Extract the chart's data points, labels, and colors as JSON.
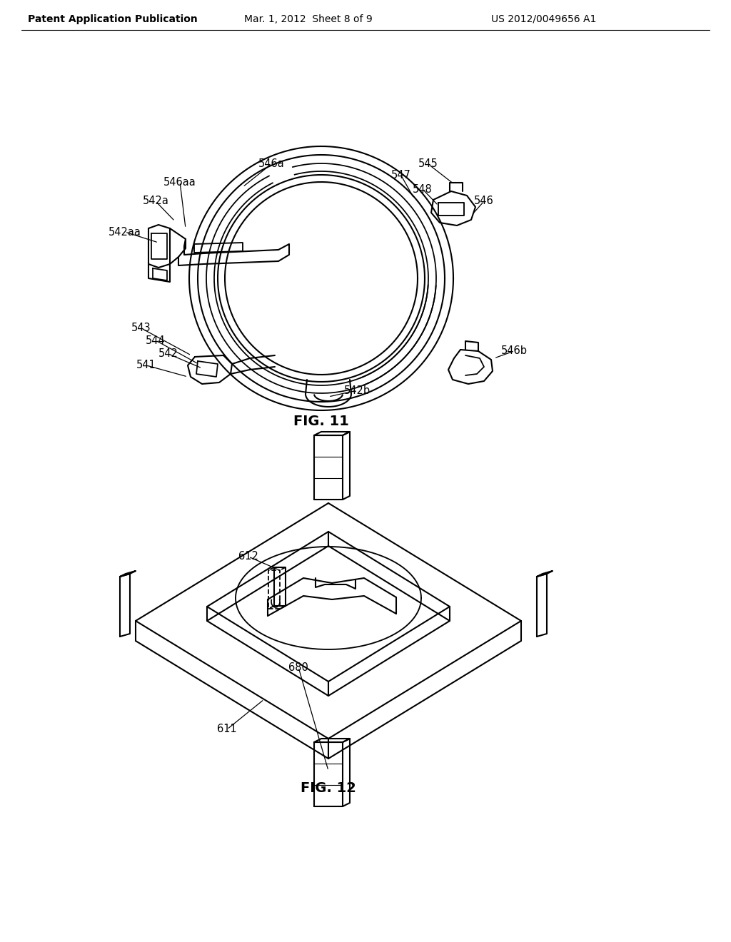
{
  "background_color": "#ffffff",
  "header_left": "Patent Application Publication",
  "header_center": "Mar. 1, 2012  Sheet 8 of 9",
  "header_right": "US 2012/0049656 A1",
  "fig11_label": "FIG. 11",
  "fig12_label": "FIG. 12",
  "line_color": "#000000",
  "line_width": 1.5,
  "annotation_fontsize": 10.5,
  "header_fontsize": 10,
  "figlabel_fontsize": 14
}
